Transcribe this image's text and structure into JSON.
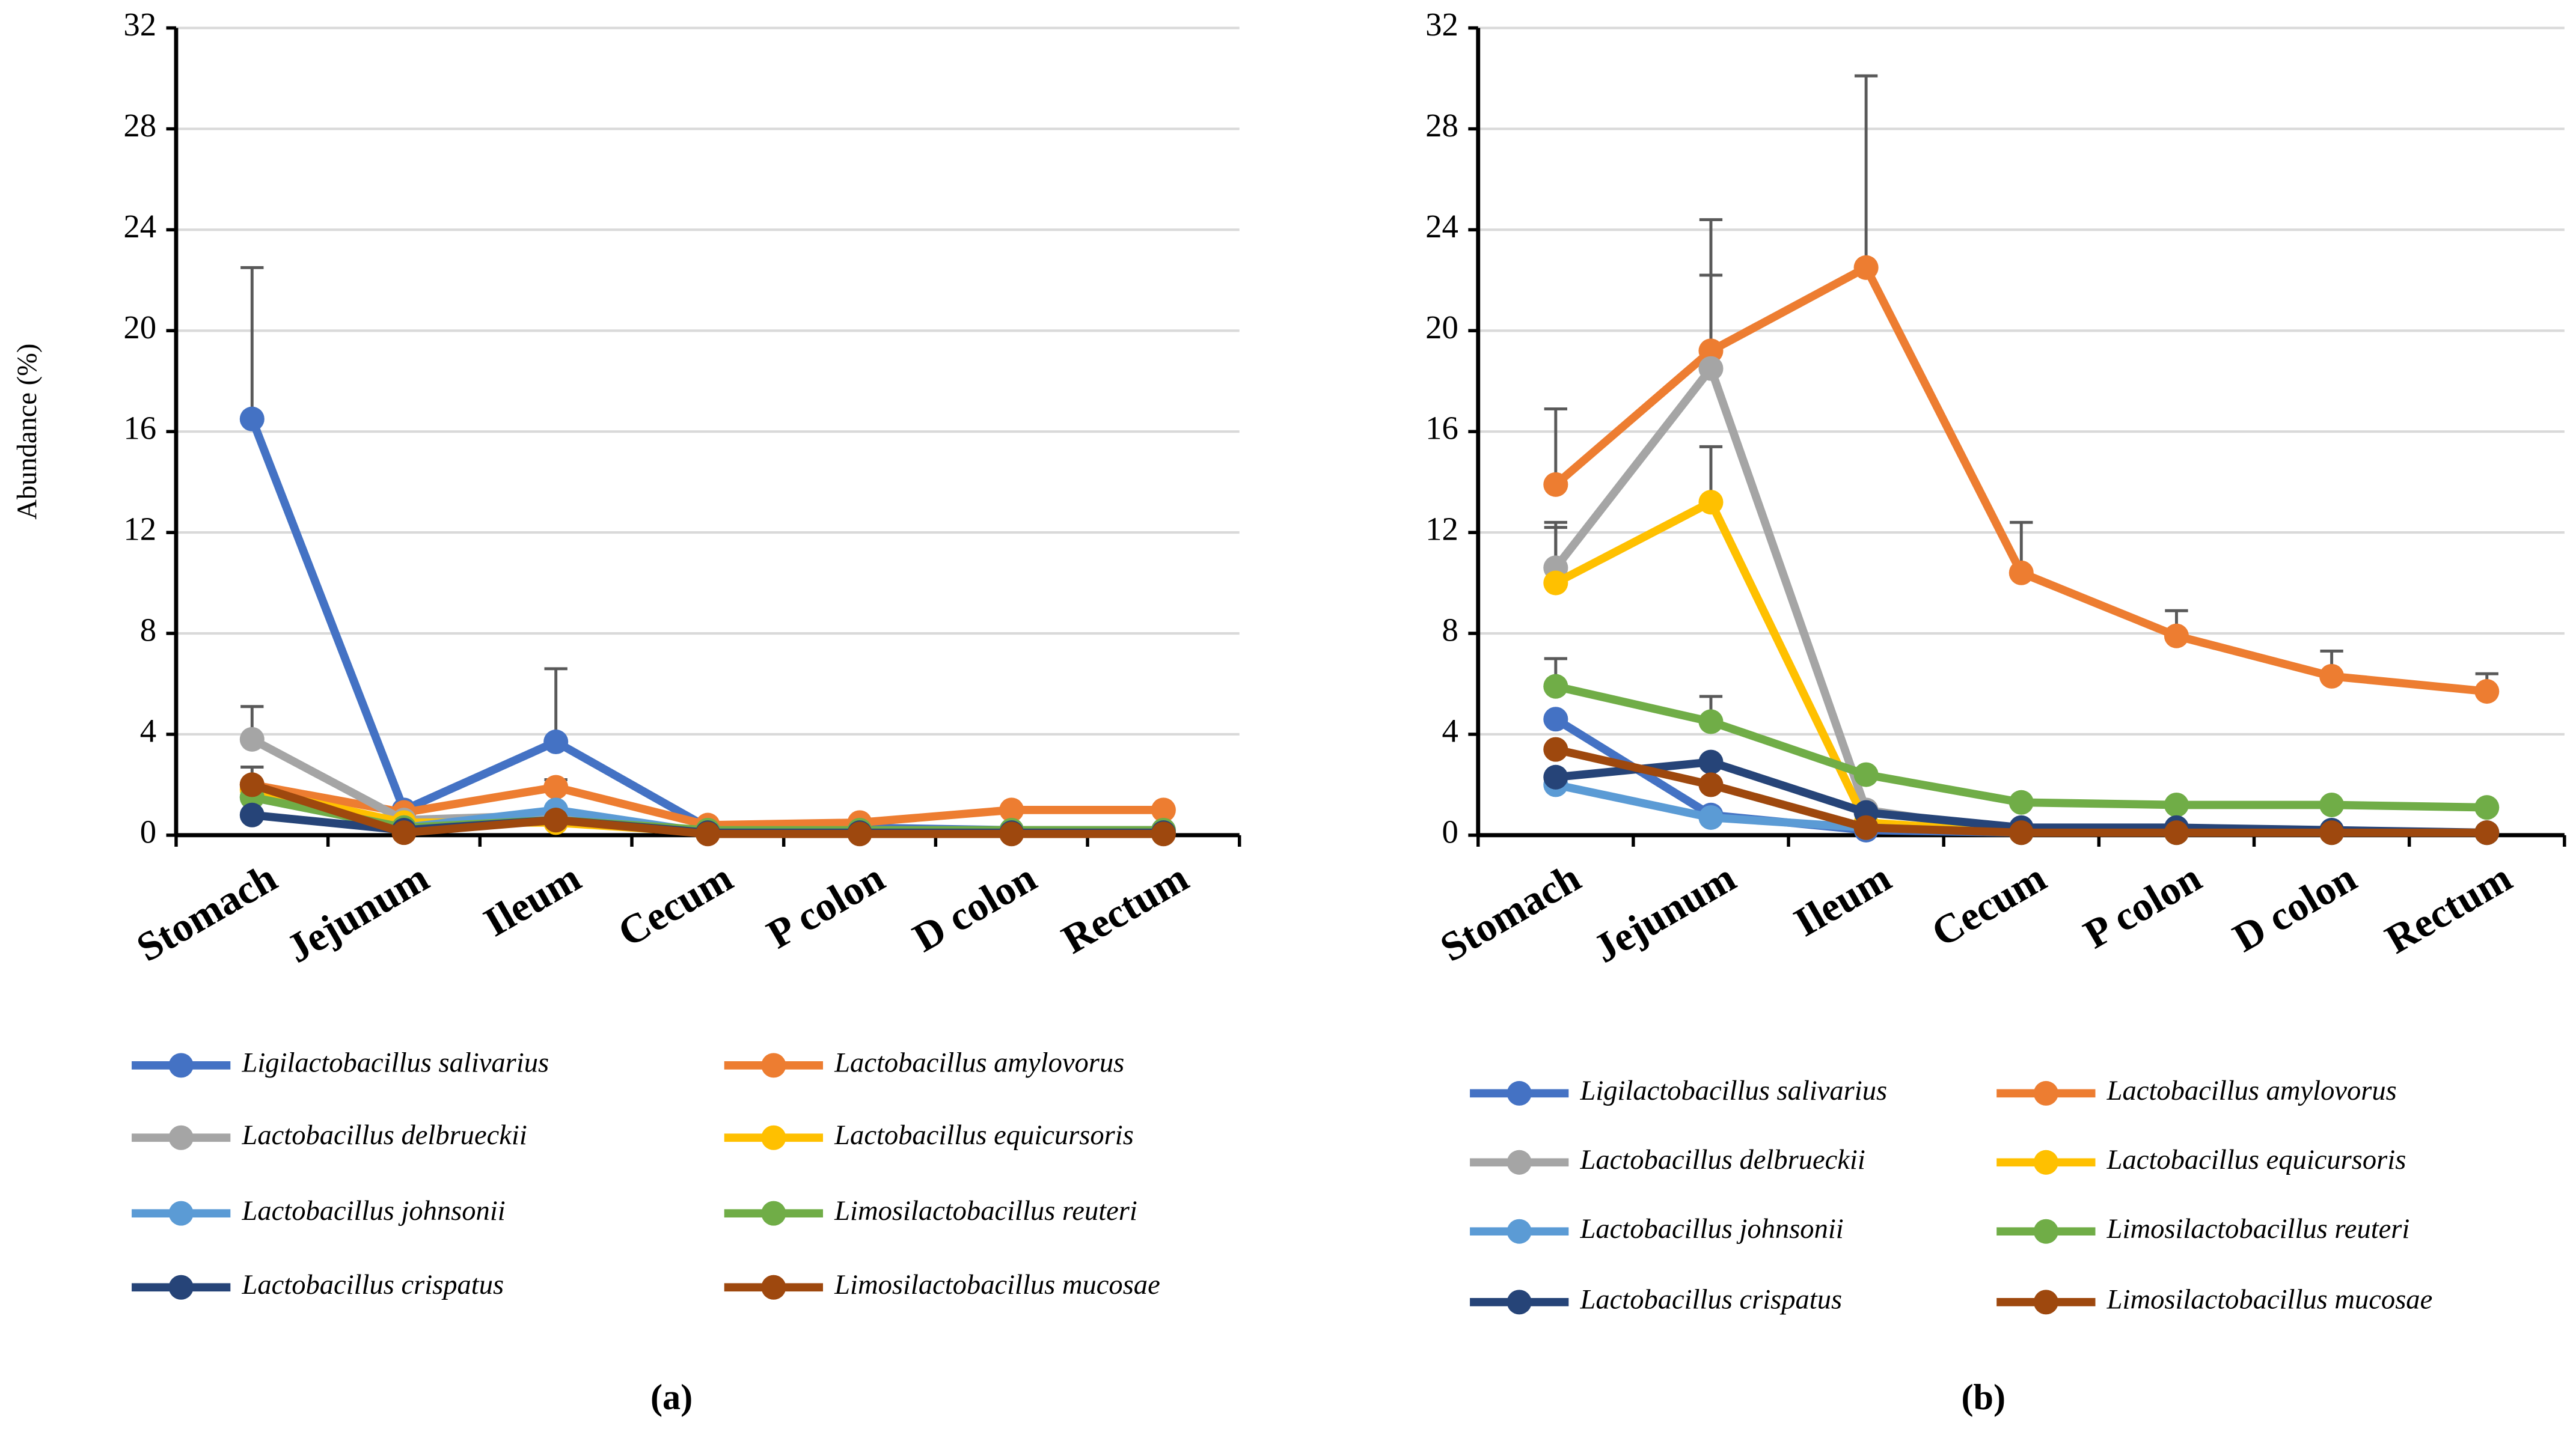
{
  "chart_data": [
    {
      "type": "line",
      "panel_label": "(a)",
      "y_label": "Abundance (%)",
      "categories": [
        "Stomach",
        "Jejunum",
        "Ileum",
        "Cecum",
        "P colon",
        "D colon",
        "Rectum"
      ],
      "ylim": [
        0,
        32
      ],
      "yticks": [
        0,
        4,
        8,
        12,
        16,
        20,
        24,
        28,
        32
      ],
      "grid": true,
      "series": [
        {
          "name": "Ligilactobacillus salivarius",
          "color": "#4472c4",
          "values": [
            16.5,
            1.0,
            3.7,
            0.3,
            0.3,
            0.2,
            0.2
          ],
          "errors": [
            6.0,
            null,
            2.9,
            null,
            null,
            null,
            null
          ]
        },
        {
          "name": "Lactobacillus amylovorus",
          "color": "#ed7d31",
          "values": [
            2.0,
            0.9,
            1.9,
            0.4,
            0.5,
            1.0,
            1.0
          ],
          "errors": [
            0.7,
            null,
            0.3,
            null,
            null,
            null,
            null
          ]
        },
        {
          "name": "Lactobacillus delbrueckii",
          "color": "#a5a5a5",
          "values": [
            3.8,
            0.6,
            0.8,
            0.1,
            0.1,
            0.1,
            0.1
          ],
          "errors": [
            1.3,
            null,
            null,
            null,
            null,
            null,
            null
          ]
        },
        {
          "name": "Lactobacillus equicursoris",
          "color": "#ffc000",
          "values": [
            1.8,
            0.5,
            0.5,
            0.1,
            0.1,
            0.1,
            0.1
          ],
          "errors": [
            null,
            null,
            null,
            null,
            null,
            null,
            null
          ]
        },
        {
          "name": "Lactobacillus johnsonii",
          "color": "#5b9bd5",
          "values": [
            1.5,
            0.3,
            1.0,
            0.1,
            0.1,
            0.1,
            0.1
          ],
          "errors": [
            null,
            null,
            null,
            null,
            null,
            null,
            null
          ]
        },
        {
          "name": "Limosilactobacillus reuteri",
          "color": "#70ad47",
          "values": [
            1.5,
            0.3,
            0.6,
            0.2,
            0.2,
            0.2,
            0.2
          ],
          "errors": [
            null,
            null,
            null,
            null,
            null,
            null,
            null
          ]
        },
        {
          "name": "Lactobacillus crispatus",
          "color": "#264478",
          "values": [
            0.8,
            0.2,
            0.6,
            0.1,
            0.1,
            0.1,
            0.1
          ],
          "errors": [
            null,
            null,
            null,
            null,
            null,
            null,
            null
          ]
        },
        {
          "name": "Limosilactobacillus mucosae",
          "color": "#9e480e",
          "values": [
            2.0,
            0.1,
            0.6,
            0.05,
            0.05,
            0.05,
            0.05
          ],
          "errors": [
            null,
            null,
            null,
            null,
            null,
            null,
            null
          ]
        }
      ]
    },
    {
      "type": "line",
      "panel_label": "(b)",
      "categories": [
        "Stomach",
        "Jejunum",
        "Ileum",
        "Cecum",
        "P colon",
        "D colon",
        "Rectum"
      ],
      "ylim": [
        0,
        32
      ],
      "yticks": [
        0,
        4,
        8,
        12,
        16,
        20,
        24,
        28,
        32
      ],
      "grid": true,
      "series": [
        {
          "name": "Ligilactobacillus salivarius",
          "color": "#4472c4",
          "values": [
            4.6,
            0.8,
            0.2,
            0.1,
            0.1,
            0.1,
            0.1
          ],
          "errors": [
            null,
            null,
            null,
            null,
            null,
            null,
            null
          ]
        },
        {
          "name": "Lactobacillus amylovorus",
          "color": "#ed7d31",
          "values": [
            13.9,
            19.2,
            22.5,
            10.4,
            7.9,
            6.3,
            5.7
          ],
          "errors": [
            3.0,
            5.2,
            7.6,
            2.0,
            1.0,
            1.0,
            0.7
          ]
        },
        {
          "name": "Lactobacillus delbrueckii",
          "color": "#a5a5a5",
          "values": [
            10.6,
            18.5,
            1.0,
            0.1,
            0.1,
            0.1,
            0.1
          ],
          "errors": [
            1.8,
            3.7,
            null,
            null,
            null,
            null,
            null
          ]
        },
        {
          "name": "Lactobacillus equicursoris",
          "color": "#ffc000",
          "values": [
            10.0,
            13.2,
            0.5,
            0.1,
            0.1,
            0.1,
            0.1
          ],
          "errors": [
            2.2,
            2.2,
            null,
            null,
            null,
            null,
            null
          ]
        },
        {
          "name": "Lactobacillus johnsonii",
          "color": "#5b9bd5",
          "values": [
            2.0,
            0.7,
            0.3,
            0.1,
            0.1,
            0.1,
            0.1
          ],
          "errors": [
            null,
            null,
            null,
            null,
            null,
            null,
            null
          ]
        },
        {
          "name": "Limosilactobacillus reuteri",
          "color": "#70ad47",
          "values": [
            5.9,
            4.5,
            2.4,
            1.3,
            1.2,
            1.2,
            1.1
          ],
          "errors": [
            1.1,
            1.0,
            null,
            null,
            null,
            null,
            null
          ]
        },
        {
          "name": "Lactobacillus crispatus",
          "color": "#264478",
          "values": [
            2.3,
            2.9,
            0.9,
            0.3,
            0.3,
            0.2,
            0.1
          ],
          "errors": [
            null,
            null,
            null,
            null,
            null,
            null,
            null
          ]
        },
        {
          "name": "Limosilactobacillus mucosae",
          "color": "#9e480e",
          "values": [
            3.4,
            2.0,
            0.3,
            0.1,
            0.1,
            0.1,
            0.1
          ],
          "errors": [
            null,
            null,
            null,
            null,
            null,
            null,
            null
          ]
        }
      ]
    }
  ]
}
